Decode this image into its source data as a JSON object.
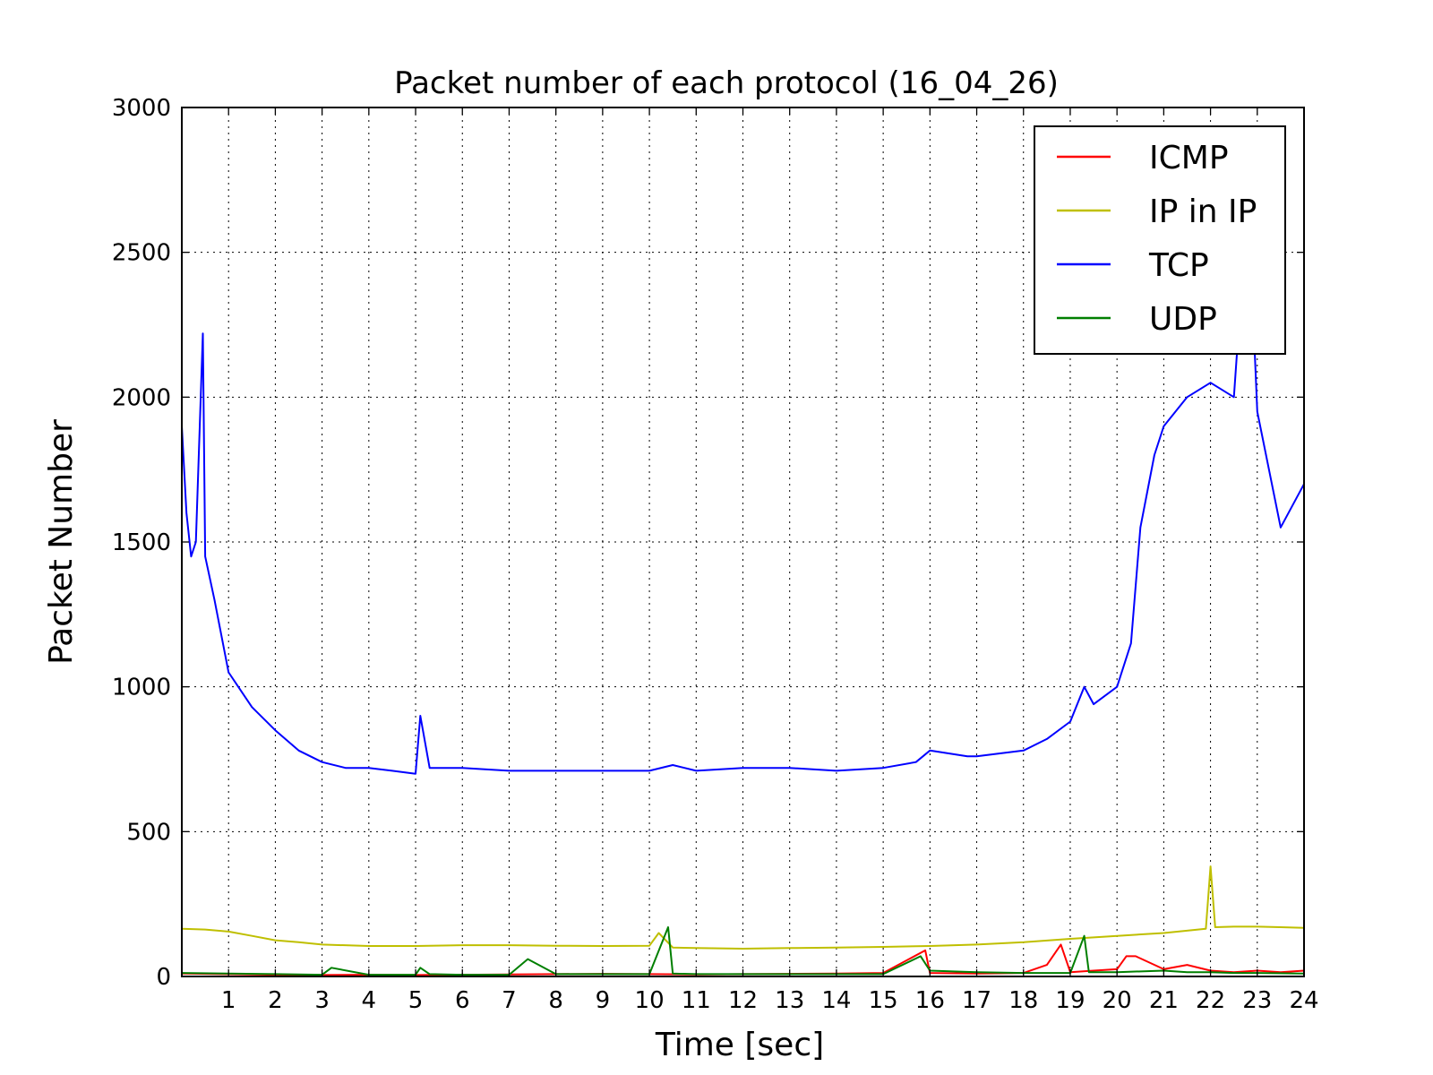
{
  "chart_data": {
    "type": "line",
    "title": "Packet number of each protocol (16_04_26)",
    "xlabel": "Time [sec]",
    "ylabel": "Packet Number",
    "xlim": [
      0,
      24
    ],
    "ylim": [
      0,
      3000
    ],
    "xticks": [
      "1",
      "2",
      "3",
      "4",
      "5",
      "6",
      "7",
      "8",
      "9",
      "10",
      "11",
      "12",
      "13",
      "14",
      "15",
      "16",
      "17",
      "18",
      "19",
      "20",
      "21",
      "22",
      "23",
      "24"
    ],
    "yticks": [
      "0",
      "500",
      "1000",
      "1500",
      "2000",
      "2500",
      "3000"
    ],
    "grid": true,
    "legend_position": "top-right",
    "series": [
      {
        "name": "ICMP",
        "color": "#ff0000",
        "x": [
          0,
          1,
          2,
          3,
          4,
          5,
          6,
          7,
          8,
          9,
          10,
          11,
          12,
          13,
          14,
          15,
          15.9,
          16,
          17,
          18,
          18.5,
          18.8,
          19,
          19.5,
          20,
          20.2,
          20.4,
          21,
          21.5,
          22,
          22.5,
          23,
          23.5,
          24
        ],
        "y": [
          10,
          8,
          6,
          5,
          6,
          5,
          6,
          7,
          8,
          9,
          8,
          7,
          8,
          9,
          10,
          12,
          90,
          12,
          10,
          12,
          40,
          110,
          15,
          20,
          25,
          70,
          70,
          25,
          40,
          20,
          15,
          20,
          15,
          20
        ]
      },
      {
        "name": "IP in IP",
        "color": "#bfbf00",
        "x": [
          0,
          0.5,
          1,
          1.5,
          2,
          2.5,
          3,
          4,
          5,
          6,
          7,
          8,
          9,
          10,
          10.2,
          10.5,
          11,
          12,
          13,
          14,
          15,
          16,
          17,
          18,
          19,
          20,
          21,
          21.9,
          22,
          22.1,
          22.5,
          23,
          23.5,
          24
        ],
        "y": [
          165,
          162,
          155,
          140,
          125,
          118,
          110,
          105,
          105,
          108,
          108,
          106,
          105,
          106,
          150,
          100,
          98,
          96,
          98,
          100,
          102,
          105,
          110,
          118,
          130,
          140,
          150,
          165,
          380,
          170,
          172,
          172,
          170,
          168
        ]
      },
      {
        "name": "TCP",
        "color": "#0000ff",
        "x": [
          0,
          0.1,
          0.2,
          0.3,
          0.45,
          0.5,
          0.7,
          1,
          1.5,
          2,
          2.5,
          3,
          3.5,
          4,
          4.5,
          5,
          5.1,
          5.3,
          6,
          7,
          8,
          9,
          10,
          10.5,
          11,
          12,
          13,
          14,
          15,
          15.7,
          16,
          16.8,
          17,
          17.5,
          18,
          18.5,
          19,
          19.3,
          19.5,
          20,
          20.3,
          20.5,
          20.8,
          21,
          21.5,
          22,
          22.5,
          22.8,
          23,
          23.5,
          24
        ],
        "y": [
          1900,
          1600,
          1450,
          1500,
          2220,
          1450,
          1300,
          1050,
          930,
          850,
          780,
          740,
          720,
          720,
          710,
          700,
          900,
          720,
          720,
          710,
          710,
          710,
          710,
          730,
          710,
          720,
          720,
          710,
          720,
          740,
          780,
          760,
          760,
          770,
          780,
          820,
          880,
          1000,
          940,
          1000,
          1150,
          1550,
          1800,
          1900,
          2000,
          2050,
          2000,
          2700,
          1950,
          1550,
          1700
        ]
      },
      {
        "name": "UDP",
        "color": "#007f00",
        "x": [
          0,
          2,
          3,
          3.2,
          4,
          5,
          5.1,
          5.3,
          6,
          7,
          7.4,
          8,
          9,
          10,
          10.4,
          10.5,
          11,
          12,
          13,
          14,
          15,
          15.8,
          16,
          17,
          18,
          19,
          19.3,
          19.4,
          20,
          21,
          21.5,
          22,
          22.5,
          23,
          24
        ],
        "y": [
          12,
          8,
          6,
          30,
          6,
          6,
          30,
          8,
          6,
          6,
          60,
          8,
          8,
          8,
          170,
          10,
          8,
          8,
          8,
          8,
          8,
          70,
          20,
          15,
          12,
          12,
          140,
          15,
          15,
          20,
          15,
          15,
          12,
          12,
          10
        ]
      }
    ]
  }
}
